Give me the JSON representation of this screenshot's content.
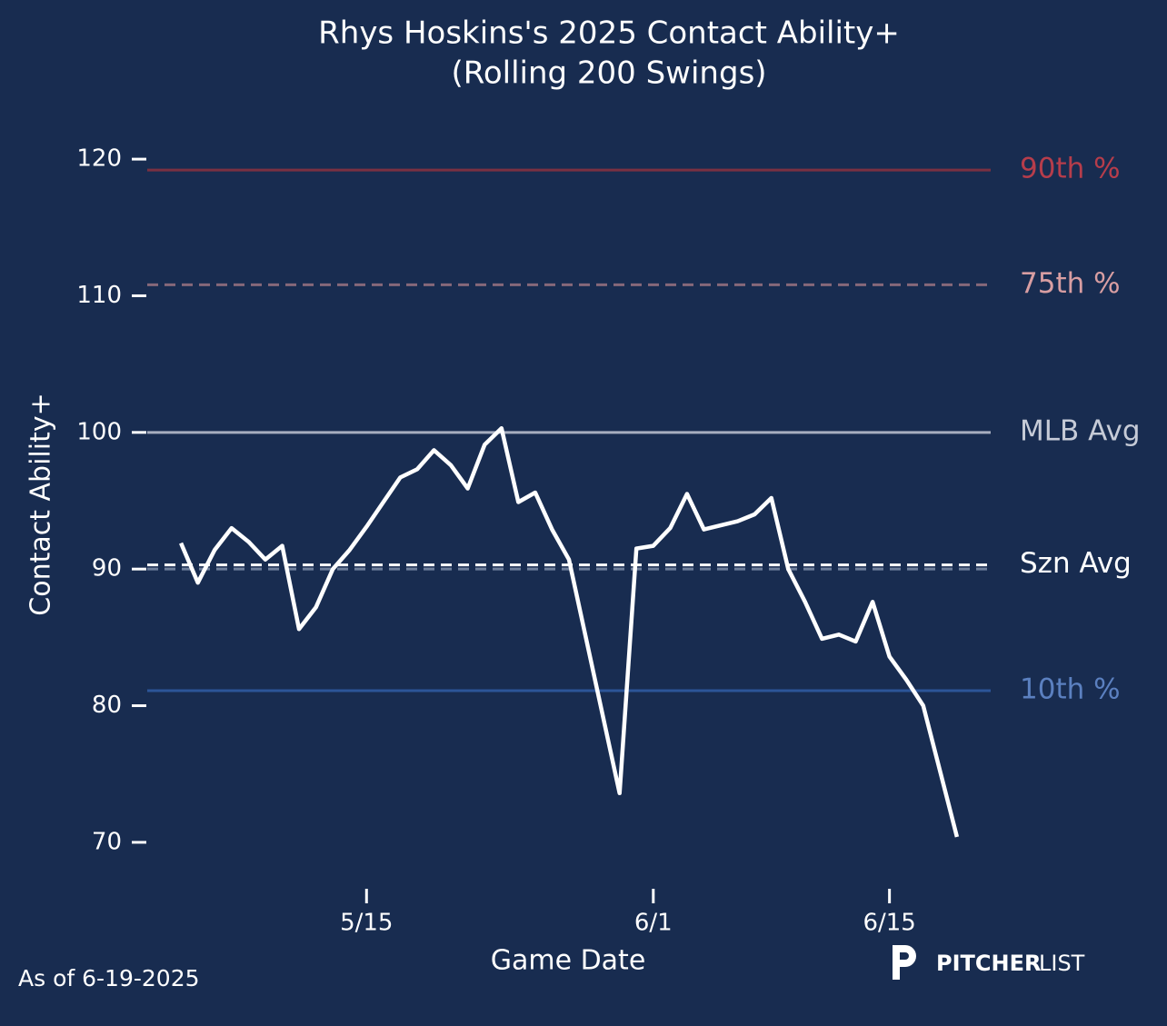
{
  "chart_data": {
    "type": "line",
    "title": "Rhys Hoskins's 2025 Contact Ability+",
    "subtitle": "(Rolling 200 Swings)",
    "x_label": "Game Date",
    "y_label": "Contact Ability+",
    "footnote": "As of 6-19-2025",
    "brand": [
      "PITCHER",
      "LIST"
    ],
    "color": "#ffffff",
    "x": [
      "5/4",
      "5/5",
      "5/6",
      "5/7",
      "5/8",
      "5/9",
      "5/10",
      "5/11",
      "5/12",
      "5/13",
      "5/14",
      "5/15",
      "5/16",
      "5/17",
      "5/18",
      "5/19",
      "5/20",
      "5/21",
      "5/22",
      "5/23",
      "5/24",
      "5/25",
      "5/26",
      "5/27",
      "5/30",
      "5/31",
      "6/1",
      "6/2",
      "6/3",
      "6/4",
      "6/5",
      "6/6",
      "6/7",
      "6/8",
      "6/9",
      "6/10",
      "6/11",
      "6/12",
      "6/13",
      "6/14",
      "6/15",
      "6/16",
      "6/17",
      "6/19"
    ],
    "values": [
      91.9,
      89.0,
      91.4,
      93.0,
      92.0,
      90.7,
      91.7,
      85.6,
      87.2,
      90.0,
      91.4,
      93.1,
      94.9,
      96.7,
      97.3,
      98.7,
      97.6,
      95.9,
      99.1,
      100.3,
      94.9,
      95.6,
      92.9,
      90.7,
      73.6,
      91.5,
      91.7,
      93.0,
      95.5,
      92.9,
      93.2,
      93.5,
      94.0,
      95.2,
      90.0,
      87.6,
      84.9,
      85.2,
      84.7,
      87.6,
      83.6,
      81.9,
      80.0,
      70.4
    ],
    "xlim": [
      "5/2",
      "6/21"
    ],
    "xticks": [
      "5/15",
      "6/1",
      "6/15"
    ],
    "ylim": [
      67,
      123
    ],
    "yticks": [
      70,
      80,
      90,
      100,
      110,
      120
    ],
    "reference_lines": [
      {
        "label": "90th %",
        "value": 119.2,
        "color": "#7a3042",
        "label_color": "#b63d4b",
        "dash": false
      },
      {
        "label": "75th %",
        "value": 110.8,
        "color": "#86687a",
        "label_color": "#d89ea2",
        "dash": true
      },
      {
        "label": "MLB Avg",
        "value": 100,
        "color": "#a7aebf",
        "label_color": "#c6cbd7",
        "dash": false
      },
      {
        "label": null,
        "value": 90.0,
        "color": "#6f7f9c",
        "label_color": null,
        "dash": true
      },
      {
        "label": "Szn Avg",
        "value": 90.3,
        "color": "#ffffff",
        "label_color": "#ffffff",
        "dash": true
      },
      {
        "label": "10th %",
        "value": 81.1,
        "color": "#2c5598",
        "label_color": "#5b80c0",
        "dash": false
      }
    ]
  }
}
